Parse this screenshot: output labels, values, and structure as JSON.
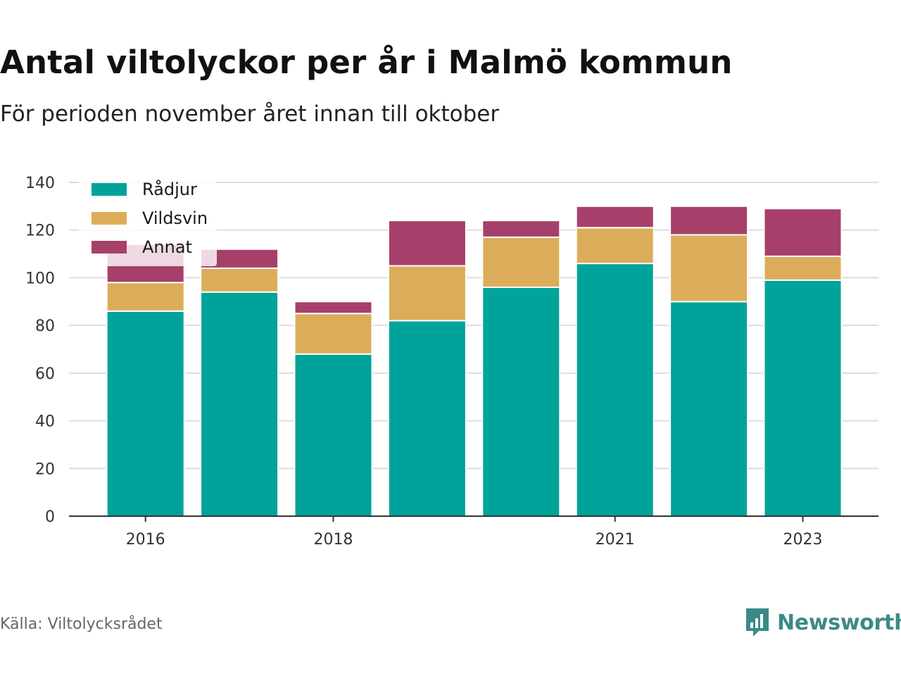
{
  "header": {
    "title": "Antal viltolyckor per år i Malmö kommun",
    "subtitle": "För perioden november året innan till oktober"
  },
  "footer": {
    "source": "Källa: Viltolycksrådet",
    "brand": "Newsworthy",
    "brand_icon": "bar-chart-icon"
  },
  "colors": {
    "radjur": "#00a39a",
    "vildsvin": "#dbad5a",
    "annat": "#a6406a",
    "brand": "#3b8a88"
  },
  "chart_data": {
    "type": "bar",
    "stacked": true,
    "title": "Antal viltolyckor per år i Malmö kommun",
    "subtitle": "För perioden november året innan till oktober",
    "categories": [
      "2016",
      "2017",
      "2018",
      "2019",
      "2020",
      "2021",
      "2022",
      "2023"
    ],
    "x_tick_labels": [
      "2016",
      "",
      "2018",
      "",
      "",
      "2021",
      "",
      "2023"
    ],
    "series": [
      {
        "name": "Rådjur",
        "color": "#00a39a",
        "values": [
          86,
          94,
          68,
          82,
          96,
          106,
          90,
          99
        ]
      },
      {
        "name": "Vildsvin",
        "color": "#dbad5a",
        "values": [
          12,
          10,
          17,
          23,
          21,
          15,
          28,
          10
        ]
      },
      {
        "name": "Annat",
        "color": "#a6406a",
        "values": [
          16,
          8,
          5,
          19,
          7,
          9,
          12,
          20
        ]
      }
    ],
    "ylim": [
      0,
      140
    ],
    "yticks": [
      0,
      20,
      40,
      60,
      80,
      100,
      120,
      140
    ],
    "grid": true,
    "legend": "top-left",
    "xlabel": "",
    "ylabel": ""
  }
}
